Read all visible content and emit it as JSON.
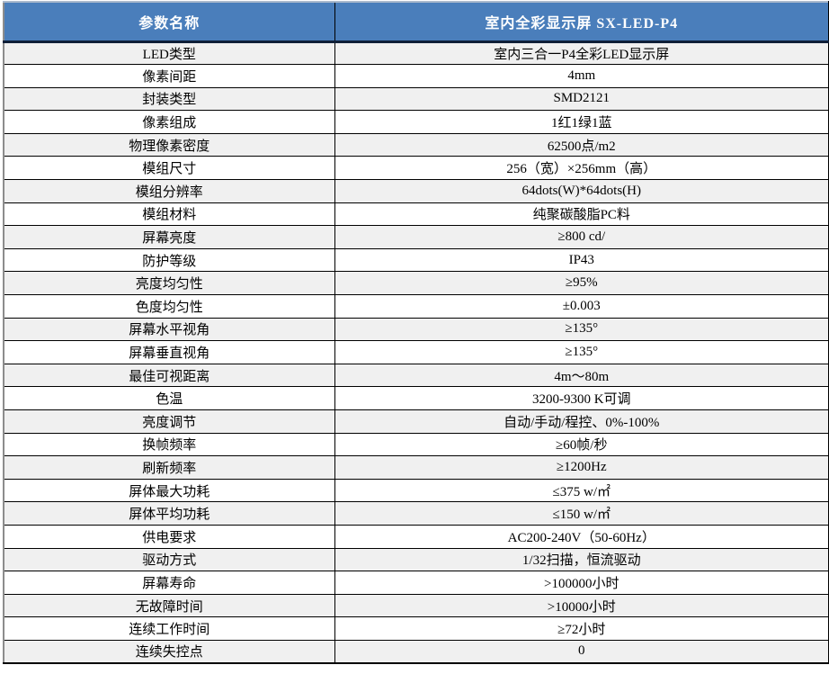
{
  "table": {
    "title": "LED display specification table",
    "colors": {
      "header_bg": "#4a7ebb",
      "header_text": "#ffffff",
      "row_alt_bg": "#f0f0f0",
      "row_bg": "#ffffff",
      "border": "#000000",
      "header_bottom_border": "#0f1f38"
    },
    "header": {
      "param_col": "参数名称",
      "value_col": "室内全彩显示屏 SX-LED-P4"
    },
    "rows": [
      {
        "param": "LED类型",
        "value": "室内三合一P4全彩LED显示屏"
      },
      {
        "param": "像素间距",
        "value": "4mm"
      },
      {
        "param": "封装类型",
        "value": "SMD2121"
      },
      {
        "param": "像素组成",
        "value": "1红1绿1蓝"
      },
      {
        "param": "物理像素密度",
        "value": "62500点/m2"
      },
      {
        "param": "模组尺寸",
        "value": "256（宽）×256mm（高）"
      },
      {
        "param": "模组分辨率",
        "value": "64dots(W)*64dots(H)"
      },
      {
        "param": "模组材料",
        "value": "纯聚碳酸脂PC料"
      },
      {
        "param": "屏幕亮度",
        "value": "≥800 cd/"
      },
      {
        "param": "防护等级",
        "value": "IP43"
      },
      {
        "param": "亮度均匀性",
        "value": "≥95%"
      },
      {
        "param": "色度均匀性",
        "value": "±0.003"
      },
      {
        "param": "屏幕水平视角",
        "value": "≥135°"
      },
      {
        "param": "屏幕垂直视角",
        "value": "≥135°"
      },
      {
        "param": "最佳可视距离",
        "value": "4m～80m"
      },
      {
        "param": "色温",
        "value": "3200-9300 K可调"
      },
      {
        "param": "亮度调节",
        "value": "自动/手动/程控、0%-100%"
      },
      {
        "param": "换帧频率",
        "value": "≥60帧/秒"
      },
      {
        "param": "刷新频率",
        "value": "≥1200Hz"
      },
      {
        "param": "屏体最大功耗",
        "value": "≤375 w/㎡"
      },
      {
        "param": "屏体平均功耗",
        "value": "≤150 w/㎡"
      },
      {
        "param": "供电要求",
        "value": "AC200-240V（50-60Hz）"
      },
      {
        "param": "驱动方式",
        "value": "1/32扫描，恒流驱动"
      },
      {
        "param": "屏幕寿命",
        "value": ">100000小时"
      },
      {
        "param": "无故障时间",
        "value": ">10000小时"
      },
      {
        "param": "连续工作时间",
        "value": "≥72小时"
      },
      {
        "param": "连续失控点",
        "value": "0"
      }
    ]
  }
}
